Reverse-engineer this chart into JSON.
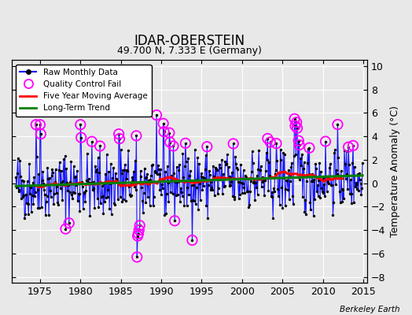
{
  "title": "IDAR-OBERSTEIN",
  "subtitle": "49.700 N, 7.333 E (Germany)",
  "ylabel": "Temperature Anomaly (°C)",
  "credit": "Berkeley Earth",
  "ylim": [
    -8.5,
    10.5
  ],
  "yticks": [
    -8,
    -6,
    -4,
    -2,
    0,
    2,
    4,
    6,
    8,
    10
  ],
  "xlim": [
    1971.5,
    2015.5
  ],
  "xticks": [
    1975,
    1980,
    1985,
    1990,
    1995,
    2000,
    2005,
    2010,
    2015
  ],
  "bg_color": "#e8e8e8",
  "grid_color": "white",
  "raw_line_color": "blue",
  "raw_dot_color": "black",
  "qc_color": "magenta",
  "moving_avg_color": "red",
  "trend_color": "green",
  "raw_linewidth": 0.8,
  "raw_dotsize": 6,
  "moving_avg_linewidth": 2.2,
  "trend_linewidth": 2.2,
  "legend_loc": "upper left",
  "title_fontsize": 12,
  "subtitle_fontsize": 9,
  "tick_labelsize": 9,
  "ylabel_fontsize": 9
}
